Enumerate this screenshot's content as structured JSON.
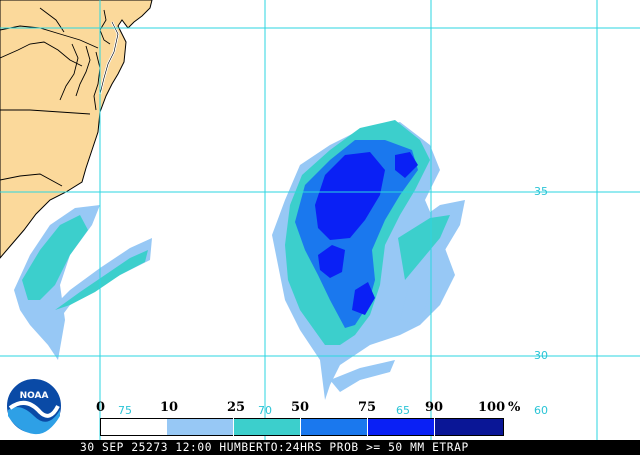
{
  "map": {
    "lat_labels": [
      "35",
      "30"
    ],
    "lon_labels": [
      "75",
      "70",
      "65",
      "60"
    ],
    "colors": {
      "land": "#fbd99b",
      "water": "#ffffff",
      "grid": "#2bd6e0",
      "border": "#000000"
    }
  },
  "legend": {
    "labels": [
      "0",
      "10",
      "25",
      "50",
      "75",
      "90",
      "100",
      "%"
    ],
    "bins": [
      {
        "from": 0,
        "to": 10,
        "color": "#ffffff"
      },
      {
        "from": 10,
        "to": 25,
        "color": "#97c8f5"
      },
      {
        "from": 25,
        "to": 50,
        "color": "#3ccfcc"
      },
      {
        "from": 50,
        "to": 75,
        "color": "#1a78ee"
      },
      {
        "from": 75,
        "to": 90,
        "color": "#0a20f5"
      },
      {
        "from": 90,
        "to": 100,
        "color": "#0a1696"
      }
    ]
  },
  "logo": {
    "text": "NOAA",
    "icon": "noaa-logo-icon"
  },
  "footer": {
    "caption": "30 SEP 25273 12:00 HUMBERTO:24HRS PROB >= 50 MM ETRAP"
  }
}
